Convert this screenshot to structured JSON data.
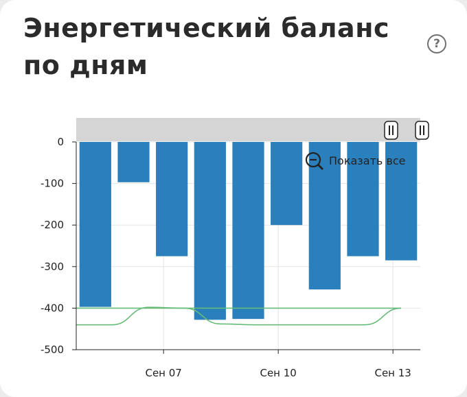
{
  "widget": {
    "title": "Энергетический баланс по дням",
    "help_icon": "question-circle-icon",
    "help_symbol": "?"
  },
  "zoom": {
    "label": "Показать все",
    "icon": "zoom-out-icon"
  },
  "chart_data": {
    "type": "bar",
    "title": "Энергетический баланс по дням",
    "xlabel": "",
    "ylabel": "",
    "ylim": [
      -500,
      0
    ],
    "y_ticks": [
      0,
      -100,
      -200,
      -300,
      -400,
      -500
    ],
    "y_tick_labels": [
      "0",
      "-100",
      "-200",
      "-300",
      "-400",
      "-500"
    ],
    "x_tick_labels": [
      "Сен 07",
      "Сен 10",
      "Сен 13"
    ],
    "series": [
      {
        "values": [
          -397,
          -97,
          -275,
          -428,
          -426,
          -200,
          -355,
          -275,
          -285
        ],
        "color": "#2a7fbd"
      }
    ],
    "reference_lines": [
      {
        "values": [
          -400,
          -400,
          -400,
          -400,
          -400,
          -400,
          -400,
          -400,
          -400
        ],
        "color": "#66bb77"
      },
      {
        "values": [
          -440,
          -440,
          -398,
          -400,
          -438,
          -440,
          -440,
          -440,
          -440,
          -400
        ],
        "color": "#66bb77"
      }
    ],
    "grid": true,
    "legend": "none"
  }
}
